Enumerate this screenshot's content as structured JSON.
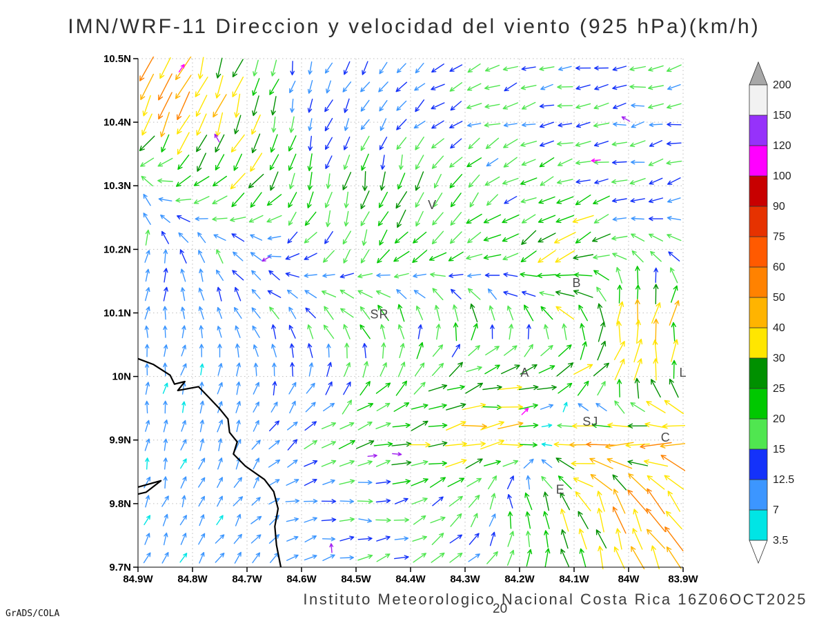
{
  "title": "IMN/WRF-11 Direccion y velocidad del viento (925 hPa)(km/h)",
  "footer": {
    "caption": "Instituto Meteorologico Nacional Costa Rica  16Z06OCT2025",
    "ref_label": "20",
    "credit": "GrADS/COLA"
  },
  "chart_data": {
    "type": "scatter",
    "plot_kind": "wind-vector-field",
    "title": "IMN/WRF-11 Direccion y velocidad del viento (925 hPa)(km/h)",
    "model": "IMN/WRF-11",
    "level": "925 hPa",
    "units": "km/h",
    "valid_time": "16Z06OCT2025",
    "xlabel": "",
    "ylabel": "",
    "grid_on": true,
    "x_axis": {
      "direction": "longitude_west",
      "ticks": [
        84.9,
        84.8,
        84.7,
        84.6,
        84.5,
        84.4,
        84.3,
        84.2,
        84.1,
        84.0,
        83.9
      ],
      "labels": [
        "84.9W",
        "84.8W",
        "84.7W",
        "84.6W",
        "84.5W",
        "84.4W",
        "84.3W",
        "84.2W",
        "84.1W",
        "84W",
        "83.9W"
      ]
    },
    "y_axis": {
      "direction": "latitude_north",
      "ticks": [
        10.5,
        10.4,
        10.3,
        10.2,
        10.1,
        10.0,
        9.9,
        9.8,
        9.7
      ],
      "labels": [
        "10.5N",
        "10.4N",
        "10.3N",
        "10.2N",
        "10.1N",
        "10N",
        "9.9N",
        "9.8N",
        "9.7N"
      ]
    },
    "colorbar": {
      "position": "right",
      "levels": [
        3.5,
        7,
        12.5,
        15,
        20,
        25,
        30,
        40,
        50,
        60,
        75,
        90,
        100,
        120,
        150,
        200
      ],
      "labels": [
        "3.5",
        "7",
        "12.5",
        "15",
        "20",
        "25",
        "30",
        "40",
        "50",
        "60",
        "75",
        "90",
        "100",
        "120",
        "150",
        "200"
      ],
      "band_colors": [
        "#00E5E5",
        "#3C96FF",
        "#1432FA",
        "#50E650",
        "#00C800",
        "#009000",
        "#FFE600",
        "#FFB400",
        "#FF8200",
        "#FF5A00",
        "#E63200",
        "#C80000",
        "#FF00FF",
        "#9632FA",
        "#F2F2F2"
      ],
      "below_color": "#FFFFFF",
      "above_color": "#A8A8A8"
    },
    "wind_grid": {
      "lon_w": [
        84.9,
        84.8,
        84.7,
        84.6,
        84.5,
        84.4,
        84.3,
        84.2,
        84.1,
        84.0,
        83.9
      ],
      "lat": [
        10.5,
        10.4,
        10.3,
        10.2,
        10.1,
        10.0,
        9.9,
        9.8,
        9.7
      ],
      "u_kmh": [
        [
          -20,
          -14,
          -6,
          -2,
          -4,
          -7,
          -12,
          -12,
          -12,
          -14,
          -13
        ],
        [
          -20,
          -14,
          -8,
          -4,
          -6,
          -8,
          -12,
          -13,
          -12,
          -13,
          -12
        ],
        [
          -8,
          -20,
          -15,
          -6,
          -4,
          -6,
          -10,
          -14,
          -16,
          -14,
          -12
        ],
        [
          2,
          -4,
          -12,
          -10,
          -8,
          -16,
          -20,
          -18,
          -30,
          -12,
          -10
        ],
        [
          1,
          0,
          -4,
          -10,
          -16,
          -6,
          -4,
          -10,
          -18,
          5,
          8
        ],
        [
          1,
          2,
          1,
          4,
          8,
          12,
          22,
          26,
          28,
          10,
          -5
        ],
        [
          1,
          2,
          3,
          10,
          18,
          26,
          32,
          34,
          -40,
          -40,
          -50
        ],
        [
          2,
          3,
          5,
          10,
          12,
          14,
          10,
          -8,
          -15,
          -20,
          -28
        ],
        [
          3,
          4,
          6,
          9,
          12,
          14,
          12,
          6,
          -4,
          -10,
          -18
        ]
      ],
      "v_kmh": [
        [
          -35,
          -38,
          -20,
          -9,
          -9,
          -8,
          -6,
          -4,
          -3,
          -3,
          -2
        ],
        [
          -32,
          -40,
          -30,
          -10,
          -10,
          -9,
          -5,
          -4,
          -3,
          -2,
          -2
        ],
        [
          14,
          -10,
          -18,
          -18,
          -20,
          -22,
          -15,
          -8,
          -6,
          -4,
          -3
        ],
        [
          13,
          12,
          10,
          -8,
          -18,
          -14,
          -10,
          -12,
          -20,
          6,
          8
        ],
        [
          9,
          9,
          10,
          10,
          14,
          18,
          20,
          14,
          20,
          35,
          30
        ],
        [
          8,
          8,
          9,
          12,
          16,
          14,
          10,
          8,
          12,
          30,
          25
        ],
        [
          7,
          7,
          8,
          6,
          6,
          6,
          4,
          2,
          -6,
          -8,
          5
        ],
        [
          7,
          7,
          7,
          2,
          -3,
          4,
          12,
          18,
          30,
          38,
          30
        ],
        [
          6,
          7,
          8,
          5,
          4,
          6,
          10,
          16,
          22,
          30,
          34
        ]
      ]
    },
    "stray_arrows": [
      {
        "lon_w": 84.82,
        "lat": 10.485,
        "dir": 55,
        "color": "#FF00FF"
      },
      {
        "lon_w": 84.755,
        "lat": 10.375,
        "dir": 120,
        "color": "#A020F0"
      },
      {
        "lon_w": 84.665,
        "lat": 10.185,
        "dir": 210,
        "color": "#A020F0"
      },
      {
        "lon_w": 84.47,
        "lat": 9.875,
        "dir": 5,
        "color": "#A020F0"
      },
      {
        "lon_w": 84.425,
        "lat": 9.878,
        "dir": 355,
        "color": "#A020F0"
      },
      {
        "lon_w": 84.19,
        "lat": 9.945,
        "dir": 45,
        "color": "#FF00FF"
      },
      {
        "lon_w": 84.005,
        "lat": 10.405,
        "dir": 150,
        "color": "#A020F0"
      },
      {
        "lon_w": 84.06,
        "lat": 10.34,
        "dir": 185,
        "color": "#FF00FF"
      },
      {
        "lon_w": 84.545,
        "lat": 9.73,
        "dir": 95,
        "color": "#A020F0"
      }
    ],
    "coastline": [
      [
        84.9,
        10.028
      ],
      [
        84.872,
        10.019
      ],
      [
        84.841,
        10.002
      ],
      [
        84.833,
        9.988
      ],
      [
        84.814,
        9.992
      ],
      [
        84.827,
        9.978
      ],
      [
        84.789,
        9.984
      ],
      [
        84.771,
        9.968
      ],
      [
        84.751,
        9.95
      ],
      [
        84.735,
        9.933
      ],
      [
        84.732,
        9.912
      ],
      [
        84.718,
        9.897
      ],
      [
        84.725,
        9.878
      ],
      [
        84.703,
        9.859
      ],
      [
        84.668,
        9.838
      ],
      [
        84.651,
        9.819
      ],
      [
        84.643,
        9.792
      ],
      [
        84.649,
        9.764
      ],
      [
        84.646,
        9.735
      ],
      [
        84.638,
        9.7
      ]
    ],
    "coastline2": [
      [
        84.9,
        9.826
      ],
      [
        84.858,
        9.836
      ],
      [
        84.885,
        9.818
      ],
      [
        84.9,
        9.815
      ]
    ],
    "stations": [
      {
        "label": "V",
        "lon_w": 84.36,
        "lat": 10.27
      },
      {
        "label": "B",
        "lon_w": 84.095,
        "lat": 10.147
      },
      {
        "label": "SR",
        "lon_w": 84.457,
        "lat": 10.098
      },
      {
        "label": "A",
        "lon_w": 84.19,
        "lat": 10.006
      },
      {
        "label": "SJ",
        "lon_w": 84.07,
        "lat": 9.929
      },
      {
        "label": "C",
        "lon_w": 83.932,
        "lat": 9.904
      },
      {
        "label": "E",
        "lon_w": 84.125,
        "lat": 9.822
      },
      {
        "label": "L",
        "lon_w": 83.9,
        "lat": 10.006
      }
    ]
  }
}
